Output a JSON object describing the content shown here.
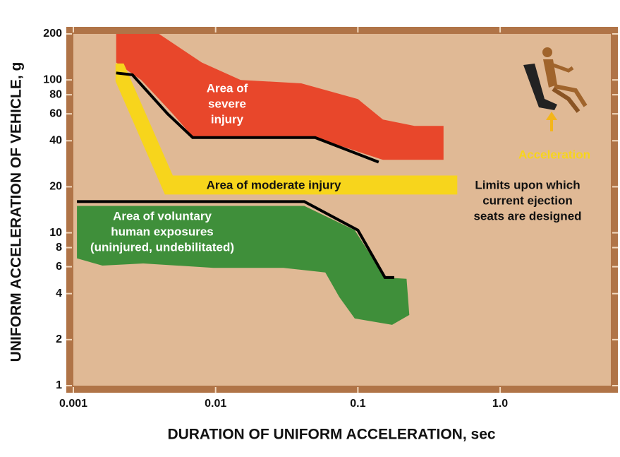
{
  "chart_data": {
    "type": "area",
    "x_label": "DURATION OF UNIFORM ACCELERATION, sec",
    "y_label": "UNIFORM ACCELERATION OF VEHICLE, g",
    "log_x": true,
    "log_y": true,
    "xlim": [
      0.001,
      6
    ],
    "ylim": [
      1,
      200
    ],
    "xticks": [
      0.001,
      0.01,
      0.1,
      {
        "value": 1,
        "label": "1.0"
      }
    ],
    "yticks": [
      1,
      2,
      4,
      6,
      8,
      10,
      20,
      40,
      60,
      80,
      100,
      200
    ],
    "annotation": "Acceleration",
    "series": [
      {
        "type": "area",
        "label": [
          "Area of",
          "severe",
          "injury"
        ],
        "color": "#e8472b",
        "x": [
          0.002,
          0.004,
          0.008,
          0.015,
          0.04,
          0.1,
          0.15,
          0.25,
          0.4,
          0.4,
          0.15,
          0.05,
          0.007,
          0.005,
          0.003,
          0.002
        ],
        "values": [
          200,
          200,
          130,
          100,
          95,
          75,
          55,
          50,
          50,
          30,
          30,
          42,
          42,
          60,
          100,
          130
        ]
      },
      {
        "type": "area",
        "label": [
          "Area of moderate injury"
        ],
        "color": "#f7d51c",
        "x": [
          0.00198,
          0.00226,
          0.005,
          0.5,
          0.5,
          0.0044,
          0.00198
        ],
        "values": [
          128,
          128,
          23.7,
          23.7,
          17.8,
          17.8,
          98
        ]
      },
      {
        "type": "area",
        "label": [
          "Area of voluntary",
          "human exposures",
          "(uninjured, undebilitated)"
        ],
        "color": "#3f8f3a",
        "x": [
          0.00106,
          0.042,
          0.095,
          0.155,
          0.22,
          0.23,
          0.174,
          0.095,
          0.074,
          0.059,
          0.03,
          0.0097,
          0.0031,
          0.0016,
          0.00106
        ],
        "values": [
          15,
          15,
          10.4,
          5.1,
          5,
          2.9,
          2.5,
          2.75,
          3.8,
          5.5,
          5.9,
          5.9,
          6.3,
          6.1,
          6.8
        ]
      },
      {
        "type": "line",
        "label": [
          "Limits upon which",
          "current ejection",
          "seats are designed"
        ],
        "color": "#000000",
        "x": [
          0.002,
          0.0026,
          0.0046,
          0.0069,
          0.05,
          0.14,
          null,
          0.00106,
          0.042,
          0.1,
          0.155,
          0.18
        ],
        "values": [
          111,
          108,
          60,
          42,
          42,
          29,
          null,
          16,
          16,
          10.4,
          5.1,
          5.1
        ]
      }
    ]
  }
}
